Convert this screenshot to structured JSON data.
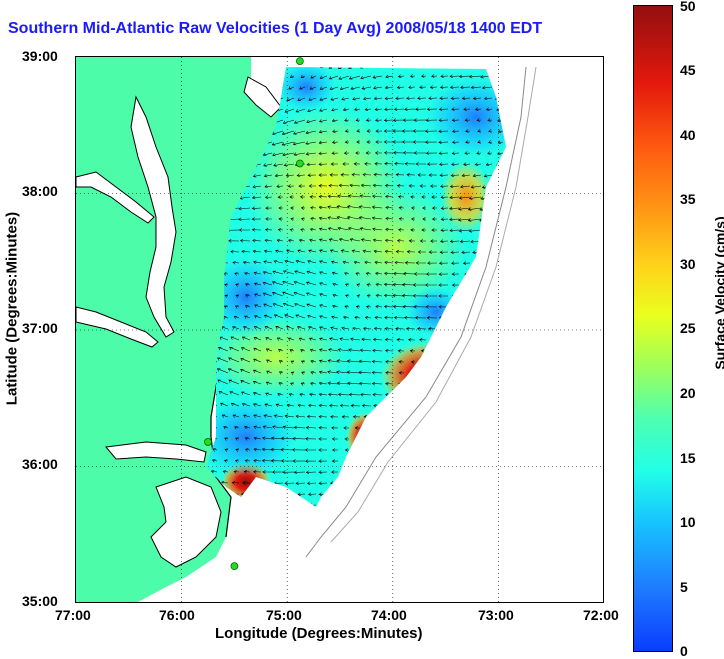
{
  "title": "Southern Mid-Atlantic Raw Velocities (1 Day Avg) 2008/05/18 1400 EDT",
  "axes": {
    "x_label": "Longitude (Degrees:Minutes)",
    "y_label": "Latitude (Degrees:Minutes)",
    "x_ticks": [
      "77:00",
      "76:00",
      "75:00",
      "74:00",
      "73:00",
      "72:00"
    ],
    "y_ticks": [
      "39:00",
      "38:00",
      "37:00",
      "36:00",
      "35:00"
    ]
  },
  "colorbar": {
    "title": "Surface Velocity (cm/s)",
    "ticks": [
      "50",
      "45",
      "40",
      "35",
      "30",
      "25",
      "20",
      "15",
      "10",
      "5",
      "0"
    ],
    "colors": {
      "low": "#0b3dff",
      "mid": "#22ffe7",
      "high": "#930f0f",
      "land": "#4dfca8",
      "coast": "#000000",
      "station": "#22dd22"
    }
  },
  "map": {
    "lon_range": [
      -77,
      -72
    ],
    "lat_range": [
      35,
      39
    ],
    "grid": true,
    "stations": [
      {
        "lon": -74.88,
        "lat": 38.97
      },
      {
        "lon": -74.88,
        "lat": 38.22
      },
      {
        "lon": -75.75,
        "lat": 36.18
      },
      {
        "lon": -75.5,
        "lat": 35.27
      }
    ]
  }
}
